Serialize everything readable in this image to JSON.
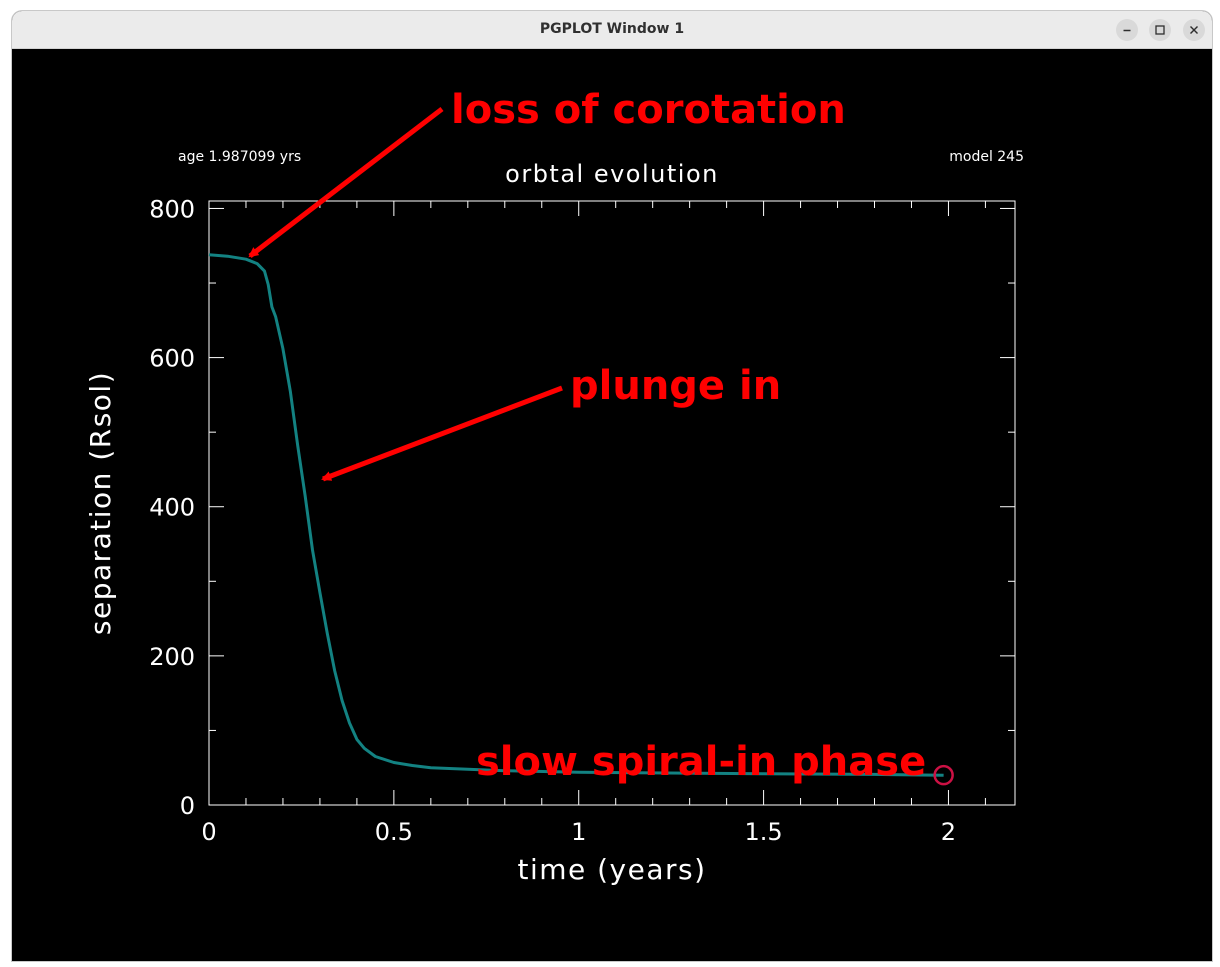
{
  "window": {
    "title": "PGPLOT Window 1"
  },
  "plot": {
    "age_label": "age 1.987099 yrs",
    "model_label": "model 245"
  },
  "annotations": {
    "loss_of_corotation": "loss of corotation",
    "plunge_in": "plunge in",
    "slow_spiral_in": "slow spiral-in phase",
    "color": "#ff0000"
  },
  "colors": {
    "curve": "#138282",
    "marker": "#cc1144",
    "axes": "#ffffff",
    "background": "#000000"
  },
  "chart_data": {
    "type": "line",
    "title": "orbtal evolution",
    "xlabel": "time (years)",
    "ylabel": "separation (Rsol)",
    "xlim": [
      0,
      2.18
    ],
    "ylim": [
      0,
      810
    ],
    "x_ticks": [
      0,
      0.5,
      1,
      1.5,
      2
    ],
    "x_tick_labels": [
      "0",
      "0.5",
      "1",
      "1.5",
      "2"
    ],
    "y_ticks": [
      0,
      200,
      400,
      600,
      800
    ],
    "y_tick_labels": [
      "0",
      "200",
      "400",
      "600",
      "800"
    ],
    "series": [
      {
        "name": "separation",
        "x": [
          0,
          0.05,
          0.1,
          0.13,
          0.15,
          0.16,
          0.17,
          0.18,
          0.2,
          0.22,
          0.24,
          0.26,
          0.28,
          0.3,
          0.32,
          0.34,
          0.36,
          0.38,
          0.4,
          0.42,
          0.45,
          0.5,
          0.55,
          0.6,
          0.7,
          0.8,
          1.0,
          1.2,
          1.5,
          1.8,
          1.987
        ],
        "y": [
          738,
          736,
          732,
          726,
          716,
          698,
          668,
          655,
          612,
          555,
          482,
          415,
          342,
          285,
          230,
          180,
          140,
          110,
          88,
          76,
          65,
          57,
          53,
          50,
          48,
          46,
          44,
          43,
          42,
          41,
          40
        ]
      }
    ],
    "end_marker": {
      "x": 1.987,
      "y": 40
    }
  }
}
